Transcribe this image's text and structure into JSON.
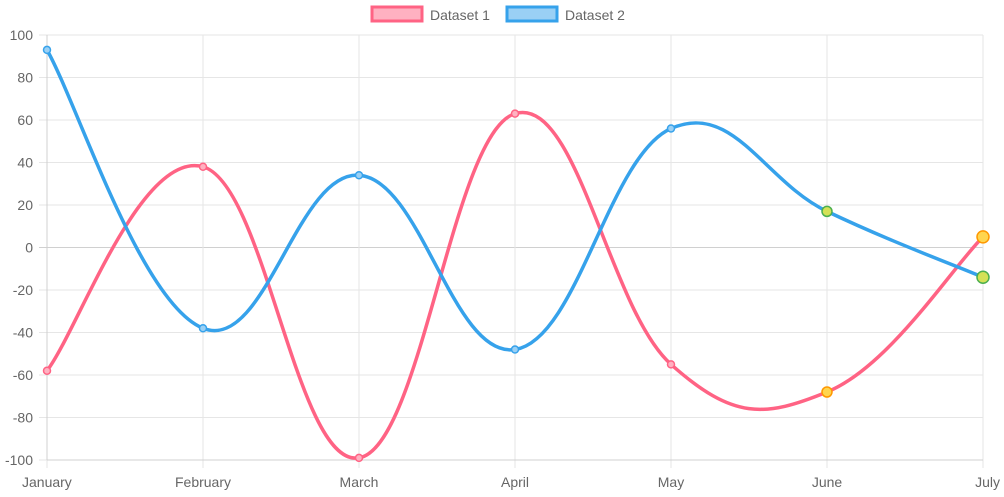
{
  "chart_data": {
    "type": "line",
    "categories": [
      "January",
      "February",
      "March",
      "April",
      "May",
      "June",
      "July"
    ],
    "ylim": [
      -100,
      100
    ],
    "yticks": [
      100,
      80,
      60,
      40,
      20,
      0,
      -20,
      -40,
      -60,
      -80,
      -100
    ],
    "grid": true,
    "legend_position": "top-center",
    "curve": "smooth",
    "series": [
      {
        "name": "Dataset 1",
        "values": [
          -58,
          38,
          -99,
          63,
          -55,
          -68,
          5
        ],
        "border_color": "#ff6384",
        "fill_color": "#ffb1c1",
        "highlight_points": [
          5,
          6
        ],
        "highlight_fill": "#ffd54f",
        "highlight_stroke": "#ff9800"
      },
      {
        "name": "Dataset 2",
        "values": [
          93,
          -38,
          34,
          -48,
          56,
          17,
          -14
        ],
        "border_color": "#36a2eb",
        "fill_color": "#9ad0f5",
        "highlight_points": [
          5,
          6
        ],
        "highlight_fill": "#d4e157",
        "highlight_stroke": "#4caf50"
      }
    ]
  }
}
